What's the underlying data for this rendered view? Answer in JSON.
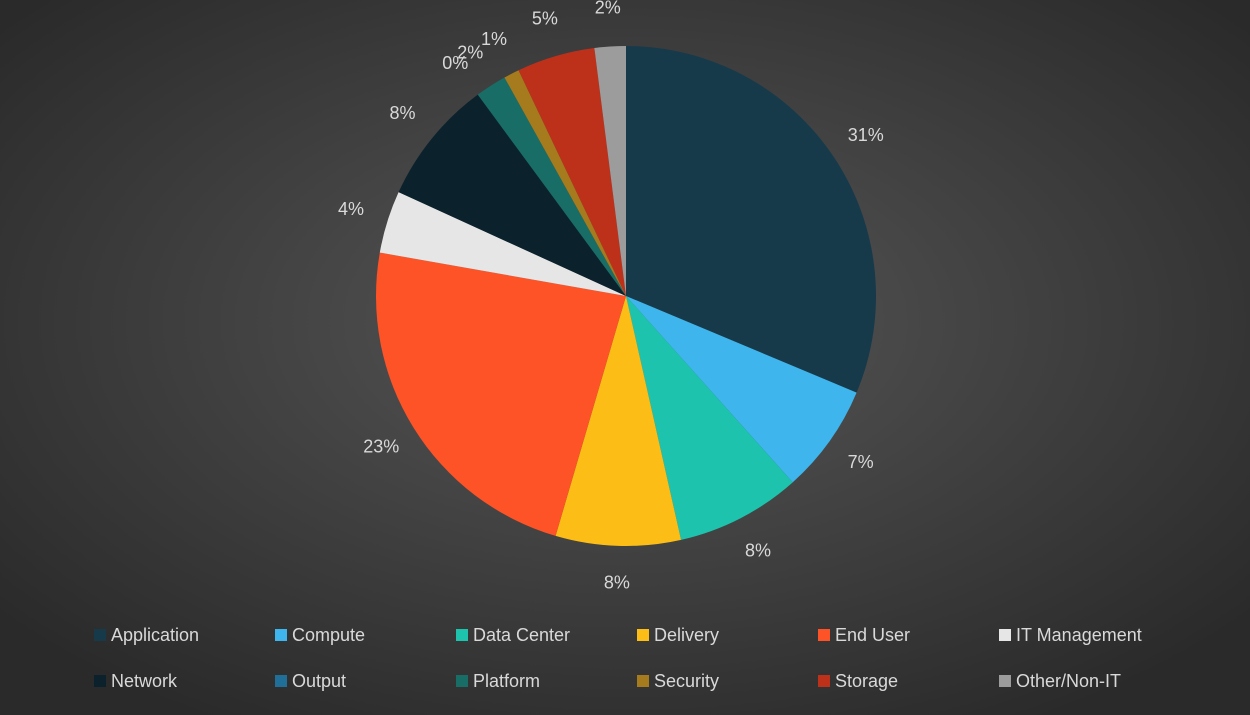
{
  "chart_data": {
    "type": "pie",
    "categories": [
      "Application",
      "Compute",
      "Data Center",
      "Delivery",
      "End User",
      "IT Management",
      "Network",
      "Output",
      "Platform",
      "Security",
      "Storage",
      "Other/Non-IT"
    ],
    "values": [
      31,
      7,
      8,
      8,
      23,
      4,
      8,
      0,
      2,
      1,
      5,
      2
    ],
    "value_labels": [
      "31%",
      "7%",
      "8%",
      "8%",
      "23%",
      "4%",
      "8%",
      "0%",
      "2%",
      "1%",
      "5%",
      "2%"
    ],
    "colors": [
      "#173a4b",
      "#3eb5ec",
      "#1ec3ae",
      "#fbbd16",
      "#fd5327",
      "#e6e6e6",
      "#0b222d",
      "#1f6f99",
      "#186d67",
      "#a57b1d",
      "#bd311b",
      "#9c9c9c"
    ],
    "legend": "bottom"
  }
}
